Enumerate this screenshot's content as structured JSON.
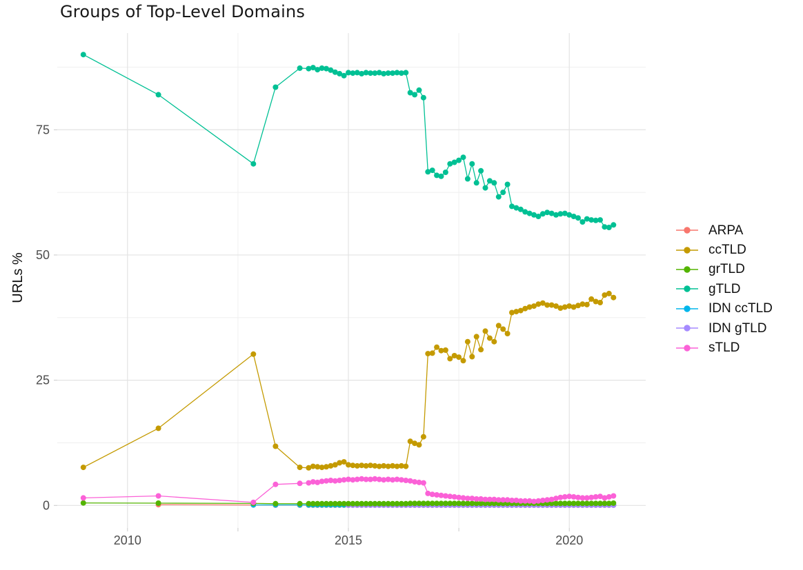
{
  "title": "Groups of Top-Level Domains",
  "chart_data": {
    "type": "line",
    "title": "Groups of Top-Level Domains",
    "xlabel": "",
    "ylabel": "URLs %",
    "grid": "on",
    "legend_position": "right",
    "marker": "point+line",
    "x_axis": {
      "tick_positions": [
        2010,
        2015,
        2020
      ],
      "tick_labels": [
        "2010",
        "2015",
        "2020"
      ],
      "minor_ticks": [
        2012.5,
        2017.5
      ],
      "range": [
        2008.41,
        2021.73
      ]
    },
    "y_axis": {
      "tick_positions": [
        0,
        25,
        50,
        75
      ],
      "tick_labels": [
        "0",
        "25",
        "50",
        "75"
      ],
      "minor_ticks": [
        12.5,
        37.5,
        62.5,
        87.5
      ],
      "range": [
        -4.5,
        94.3
      ]
    },
    "x_years": [
      2009.0,
      2010.7,
      2012.85,
      2013.35,
      2013.9,
      2014.1,
      2014.2,
      2014.3,
      2014.4,
      2014.5,
      2014.6,
      2014.7,
      2014.8,
      2014.9,
      2015.0,
      2015.1,
      2015.2,
      2015.3,
      2015.4,
      2015.5,
      2015.6,
      2015.7,
      2015.8,
      2015.9,
      2016.0,
      2016.1,
      2016.2,
      2016.3,
      2016.4,
      2016.5,
      2016.6,
      2016.7,
      2016.8,
      2016.9,
      2017.0,
      2017.1,
      2017.2,
      2017.3,
      2017.4,
      2017.5,
      2017.6,
      2017.7,
      2017.8,
      2017.9,
      2018.0,
      2018.1,
      2018.2,
      2018.3,
      2018.4,
      2018.5,
      2018.6,
      2018.7,
      2018.8,
      2018.9,
      2019.0,
      2019.1,
      2019.2,
      2019.3,
      2019.4,
      2019.5,
      2019.6,
      2019.7,
      2019.8,
      2019.9,
      2020.0,
      2020.1,
      2020.2,
      2020.3,
      2020.4,
      2020.5,
      2020.6,
      2020.7,
      2020.8,
      2020.9,
      2021.0
    ],
    "z_order": [
      "ARPA",
      "IDN ccTLD",
      "IDN gTLD",
      "grTLD",
      "sTLD",
      "ccTLD",
      "gTLD"
    ],
    "series": [
      {
        "name": "ARPA",
        "color": "#F8766D",
        "start_index": 1,
        "values": [
          0.15,
          0.1,
          0.05,
          0.05,
          0.05,
          0.05,
          0.05,
          0.05,
          0.05,
          0.05,
          0.05,
          0.05,
          0.05,
          0.05,
          0.05,
          0.05,
          0.05,
          0.05,
          0.05,
          0.05,
          0.05,
          0.05,
          0.05,
          0.05,
          0.05,
          0.05,
          0.05,
          0.05,
          0.05,
          0.05,
          0.05,
          0.05,
          0.05,
          0.05,
          0.05,
          0.05,
          0.05,
          0.05,
          0.05,
          0.05,
          0.05,
          0.05,
          0.05,
          0.05,
          0.05,
          0.05,
          0.05,
          0.05,
          0.05,
          0.05,
          0.05,
          0.05,
          0.05,
          0.05,
          0.05,
          0.05,
          0.05,
          0.05,
          0.05,
          0.05,
          0.05,
          0.05,
          0.05,
          0.05,
          0.05,
          0.05,
          0.05,
          0.05,
          0.05,
          0.05,
          0.05,
          0.05,
          0.05,
          0.05
        ]
      },
      {
        "name": "ccTLD",
        "color": "#C49A00",
        "start_index": 0,
        "values": [
          7.6,
          15.4,
          30.2,
          11.8,
          7.6,
          7.5,
          7.8,
          7.7,
          7.6,
          7.7,
          7.9,
          8.1,
          8.5,
          8.7,
          8.1,
          8.0,
          7.9,
          8.0,
          7.9,
          8.0,
          7.9,
          7.8,
          7.9,
          7.8,
          7.9,
          7.8,
          7.9,
          7.8,
          12.8,
          12.4,
          12.1,
          13.7,
          30.3,
          30.4,
          31.6,
          30.9,
          31.0,
          29.3,
          29.9,
          29.6,
          28.9,
          32.7,
          29.7,
          33.7,
          31.1,
          34.8,
          33.4,
          32.7,
          35.9,
          35.2,
          34.3,
          38.5,
          38.7,
          38.9,
          39.3,
          39.6,
          39.8,
          40.2,
          40.4,
          40.0,
          40.0,
          39.8,
          39.4,
          39.6,
          39.8,
          39.6,
          39.9,
          40.2,
          40.1,
          41.2,
          40.7,
          40.5,
          42.0,
          42.3,
          41.5
        ]
      },
      {
        "name": "grTLD",
        "color": "#53B400",
        "start_index": 0,
        "values": [
          0.5,
          0.45,
          0.4,
          0.35,
          0.35,
          0.35,
          0.35,
          0.35,
          0.35,
          0.35,
          0.35,
          0.35,
          0.35,
          0.35,
          0.35,
          0.35,
          0.35,
          0.35,
          0.35,
          0.35,
          0.35,
          0.35,
          0.35,
          0.35,
          0.35,
          0.35,
          0.35,
          0.35,
          0.4,
          0.4,
          0.4,
          0.4,
          0.4,
          0.4,
          0.4,
          0.4,
          0.4,
          0.4,
          0.4,
          0.4,
          0.4,
          0.4,
          0.4,
          0.4,
          0.4,
          0.4,
          0.4,
          0.4,
          0.4,
          0.4,
          0.4,
          0.4,
          0.4,
          0.4,
          0.4,
          0.4,
          0.4,
          0.4,
          0.4,
          0.4,
          0.4,
          0.4,
          0.4,
          0.4,
          0.4,
          0.4,
          0.4,
          0.4,
          0.4,
          0.4,
          0.4,
          0.4,
          0.4,
          0.4,
          0.45
        ]
      },
      {
        "name": "gTLD",
        "color": "#00C094",
        "start_index": 0,
        "values": [
          90.0,
          82.0,
          68.2,
          83.5,
          87.3,
          87.2,
          87.4,
          87.0,
          87.3,
          87.2,
          86.9,
          86.5,
          86.2,
          85.8,
          86.4,
          86.3,
          86.4,
          86.2,
          86.4,
          86.3,
          86.3,
          86.4,
          86.2,
          86.3,
          86.3,
          86.4,
          86.3,
          86.4,
          82.4,
          82.0,
          82.9,
          81.4,
          66.6,
          66.9,
          65.9,
          65.7,
          66.5,
          68.2,
          68.5,
          68.9,
          69.5,
          65.2,
          68.2,
          64.4,
          66.8,
          63.4,
          64.8,
          64.4,
          61.6,
          62.5,
          64.1,
          59.7,
          59.4,
          59.1,
          58.6,
          58.3,
          58.0,
          57.7,
          58.2,
          58.5,
          58.3,
          58.0,
          58.2,
          58.3,
          58.0,
          57.7,
          57.4,
          56.6,
          57.2,
          57.0,
          56.9,
          57.0,
          55.6,
          55.5,
          56.0
        ]
      },
      {
        "name": "IDN ccTLD",
        "color": "#00B6EB",
        "start_index": 2,
        "values": [
          0.1,
          0.1,
          0.1,
          0.1,
          0.1,
          0.1,
          0.1,
          0.1,
          0.1,
          0.1,
          0.1,
          0.1,
          0.1,
          0.1,
          0.1,
          0.1,
          0.1,
          0.1,
          0.1,
          0.1,
          0.1,
          0.1,
          0.1,
          0.1,
          0.1,
          0.1,
          0.1,
          0.1,
          0.1,
          0.1,
          0.1,
          0.1,
          0.1,
          0.1,
          0.1,
          0.1,
          0.1,
          0.1,
          0.1,
          0.1,
          0.1,
          0.1,
          0.1,
          0.1,
          0.1,
          0.1,
          0.1,
          0.1,
          0.1,
          0.1,
          0.1,
          0.1,
          0.1,
          0.1,
          0.1,
          0.1,
          0.1,
          0.1,
          0.1,
          0.1,
          0.1,
          0.1,
          0.1,
          0.1,
          0.1,
          0.1,
          0.1,
          0.1,
          0.1,
          0.1,
          0.1,
          0.1,
          0.1
        ]
      },
      {
        "name": "IDN gTLD",
        "color": "#A58AFF",
        "start_index": 14,
        "values": [
          0.05,
          0.05,
          0.05,
          0.05,
          0.05,
          0.05,
          0.05,
          0.05,
          0.05,
          0.05,
          0.05,
          0.05,
          0.05,
          0.05,
          0.05,
          0.05,
          0.05,
          0.05,
          0.05,
          0.05,
          0.05,
          0.05,
          0.05,
          0.05,
          0.05,
          0.05,
          0.05,
          0.05,
          0.05,
          0.05,
          0.05,
          0.05,
          0.05,
          0.05,
          0.05,
          0.05,
          0.05,
          0.05,
          0.05,
          0.05,
          0.05,
          0.05,
          0.05,
          0.05,
          0.05,
          0.05,
          0.05,
          0.05,
          0.05,
          0.05,
          0.05,
          0.05,
          0.05,
          0.05,
          0.05,
          0.05,
          0.05,
          0.05,
          0.05,
          0.05,
          0.05
        ]
      },
      {
        "name": "sTLD",
        "color": "#FB61D7",
        "start_index": 0,
        "values": [
          1.5,
          1.9,
          0.6,
          4.2,
          4.4,
          4.5,
          4.7,
          4.6,
          4.8,
          4.9,
          5.0,
          4.9,
          5.0,
          5.1,
          5.2,
          5.1,
          5.2,
          5.3,
          5.2,
          5.2,
          5.3,
          5.2,
          5.1,
          5.2,
          5.1,
          5.2,
          5.1,
          5.0,
          4.9,
          4.7,
          4.6,
          4.5,
          2.4,
          2.2,
          2.1,
          2.0,
          1.9,
          1.8,
          1.7,
          1.6,
          1.5,
          1.4,
          1.4,
          1.3,
          1.3,
          1.2,
          1.2,
          1.2,
          1.1,
          1.1,
          1.1,
          1.0,
          1.0,
          0.9,
          0.9,
          0.9,
          0.8,
          0.9,
          1.0,
          1.1,
          1.2,
          1.4,
          1.6,
          1.7,
          1.8,
          1.7,
          1.6,
          1.5,
          1.5,
          1.6,
          1.7,
          1.8,
          1.5,
          1.7,
          1.9
        ]
      }
    ],
    "style": {
      "grid_major_color": "#e3e3e3",
      "grid_minor_color": "#efefef",
      "tick_color": "#c9c9c9",
      "tick_label_color": "#4d4d4d",
      "point_radius": 4,
      "line_width": 1.3
    }
  }
}
